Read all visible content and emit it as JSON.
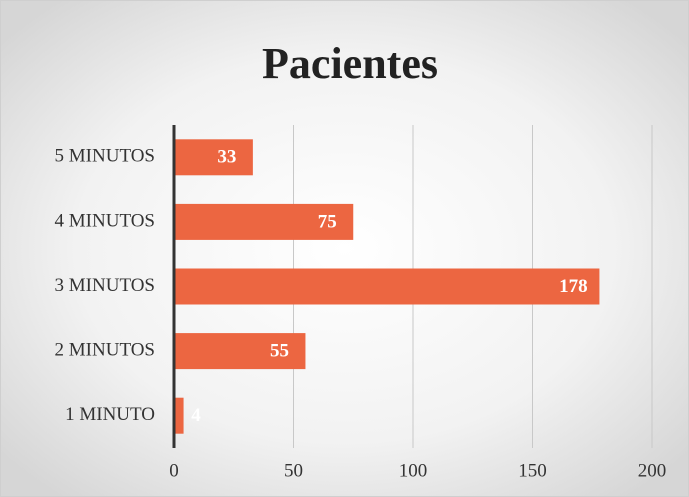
{
  "chart_data": {
    "type": "barh",
    "title": "Pacientes",
    "categories": [
      "5 MINUTOS",
      "4 MINUTOS",
      "3 MINUTOS",
      "2 MINUTOS",
      "1 MINUTO"
    ],
    "values": [
      33,
      75,
      178,
      55,
      4
    ],
    "color": "#ec6641",
    "xlim": [
      0,
      200
    ],
    "xticks": [
      0,
      50,
      100,
      150,
      200
    ],
    "grid": true
  }
}
